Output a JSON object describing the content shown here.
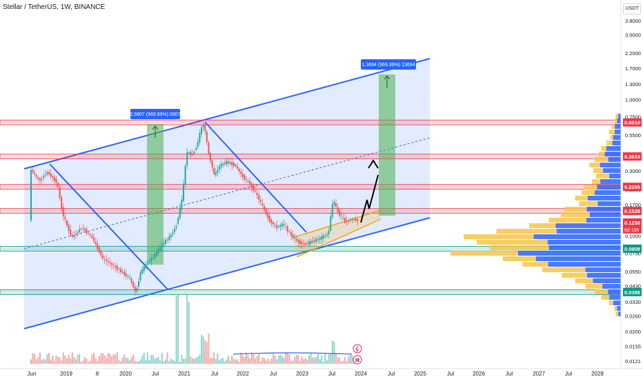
{
  "header": {
    "title": "Stellar / TetherUS, 1W, BINANCE",
    "currency": "USDT"
  },
  "chart_data": {
    "type": "candlestick",
    "symbol": "Stellar / TetherUS",
    "interval": "1W",
    "exchange": "BINANCE",
    "y_scale": "log",
    "ylim": [
      0.0106,
      5.0
    ],
    "x_ticks": [
      "Jun",
      "2019",
      "8",
      "2020",
      "Jul",
      "2021",
      "Jul",
      "2022",
      "Jul",
      "2023",
      "Jul",
      "2024",
      "Jul",
      "2025",
      "Jul",
      "2026",
      "Jul",
      "2027",
      "Jul",
      "2028"
    ],
    "y_ticks": [
      "3.8000",
      "3.0000",
      "2.2000",
      "1.7000",
      "1.3000",
      "1.0000",
      "0.7500",
      "0.5500",
      "0.4000",
      "0.3000",
      "0.2200",
      "0.1700",
      "0.1300",
      "0.1000",
      "0.0750",
      "0.0550",
      "0.0430",
      "0.0330",
      "0.0260",
      "0.0200",
      "0.0155",
      "0.0121"
    ],
    "y_tick_values": [
      3.8,
      3.0,
      2.2,
      1.7,
      1.3,
      1.0,
      0.75,
      0.55,
      0.4,
      0.3,
      0.22,
      0.17,
      0.13,
      0.1,
      0.075,
      0.055,
      0.043,
      0.033,
      0.026,
      0.02,
      0.0155,
      0.0121
    ],
    "levels": [
      {
        "label": "0.6810",
        "value": 0.681,
        "color": "#f23645"
      },
      {
        "label": "0.3833",
        "value": 0.3833,
        "color": "#f23645"
      },
      {
        "label": "0.2295",
        "value": 0.2295,
        "color": "#f23645"
      },
      {
        "label": "0.1528",
        "value": 0.1528,
        "color": "#f23645"
      },
      {
        "label": "0.0808",
        "value": 0.0808,
        "color": "#089981"
      },
      {
        "label": "0.0388",
        "value": 0.0388,
        "color": "#089981"
      }
    ],
    "current_price": {
      "label": "0.1258",
      "countdown": "6d 15h",
      "value": 0.1258,
      "color": "#f23645"
    },
    "measurements": [
      {
        "label": "0.5907 (969.99%) 5907",
        "from": 0.0609,
        "to": 0.651
      },
      {
        "label": "1.3694 (969.39%) 13694",
        "from": 0.1413,
        "to": 1.51
      }
    ],
    "colors": {
      "up": "#26a69a",
      "down": "#ef5350",
      "channel": "#2962ff",
      "profile_up": "#2962ff",
      "profile_down": "#f7c548"
    }
  }
}
